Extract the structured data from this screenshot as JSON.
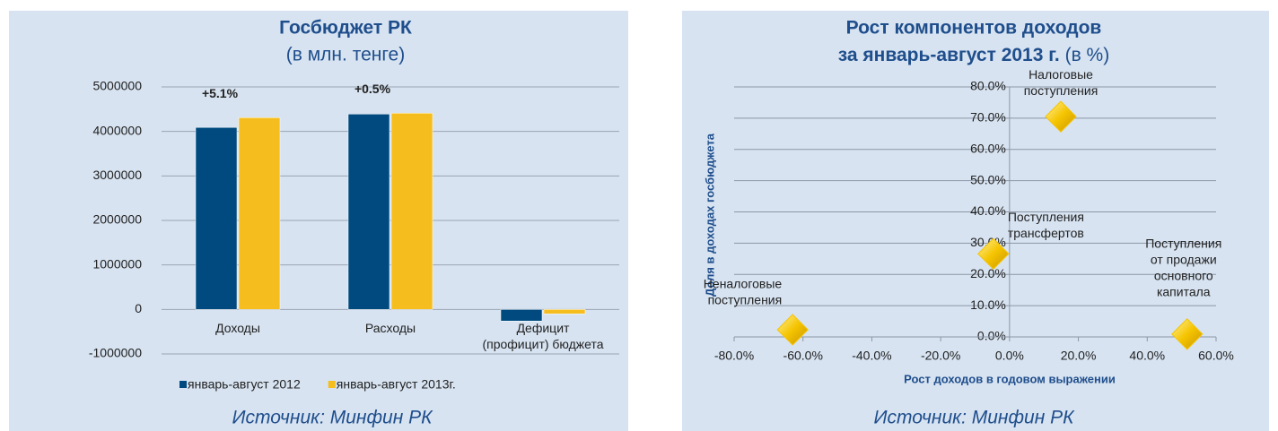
{
  "chart_data": [
    {
      "type": "bar",
      "title": "Госбюджет РК",
      "subtitle": "(в млн. тенге)",
      "categories": [
        [
          "Доходы"
        ],
        [
          "Расходы"
        ],
        [
          "Дефицит",
          "(профицит) бюджета"
        ]
      ],
      "series": [
        {
          "name": "январь-август 2012",
          "color": "#004a80",
          "values": [
            4090000,
            4390000,
            -260000
          ]
        },
        {
          "name": "январь-август 2013г.",
          "color": "#f5be1e",
          "values": [
            4310000,
            4410000,
            -100000
          ]
        }
      ],
      "annotations": [
        "+5.1%",
        "+0.5%"
      ],
      "ylim": [
        -1000000,
        5000000
      ],
      "yticks": [
        -1000000,
        0,
        1000000,
        2000000,
        3000000,
        4000000,
        5000000
      ],
      "grid": true,
      "legend": "bottom",
      "source": "Источник: Минфин РК"
    },
    {
      "type": "scatter",
      "title": "Рост компонентов доходов",
      "title_line2": "за январь-август 2013 г.",
      "title_suffix": "(в %)",
      "xlabel": "Рост доходов в годовом выражении",
      "ylabel": "Доля в доходах госбюджета",
      "color": "#f5c400",
      "points": [
        {
          "label": [
            "Налоговые",
            "поступления"
          ],
          "x": 14.9,
          "y": 70.5
        },
        {
          "label": [
            "Поступления",
            "трансфертов"
          ],
          "x": -4.7,
          "y": 26.6
        },
        {
          "label": [
            "Неналоговые",
            "поступления"
          ],
          "x": -63,
          "y": 2.3
        },
        {
          "label": [
            "Поступления",
            "от продажи",
            "основного",
            "капитала"
          ],
          "x": 51.6,
          "y": 0.9
        }
      ],
      "xlim": [
        -80,
        60
      ],
      "xticks": [
        {
          "value": -80,
          "label": "-80.0%"
        },
        {
          "value": -60,
          "label": "-60.0%"
        },
        {
          "value": -40,
          "label": "-40.0%"
        },
        {
          "value": -20,
          "label": "-20.0%"
        },
        {
          "value": 0,
          "label": "0.0%"
        },
        {
          "value": 20,
          "label": "20.0%"
        },
        {
          "value": 40,
          "label": "40.0%"
        },
        {
          "value": 60,
          "label": "60.0%"
        }
      ],
      "ylim": [
        0,
        80
      ],
      "yticks": [
        {
          "value": 0,
          "label": "0.0%"
        },
        {
          "value": 10,
          "label": "10.0%"
        },
        {
          "value": 20,
          "label": "20.0%"
        },
        {
          "value": 30,
          "label": "30.0%"
        },
        {
          "value": 40,
          "label": "40.0%"
        },
        {
          "value": 50,
          "label": "50.0%"
        },
        {
          "value": 60,
          "label": "60.0%"
        },
        {
          "value": 70,
          "label": "70.0%"
        },
        {
          "value": 80,
          "label": "80.0%"
        }
      ],
      "grid": true,
      "source": "Источник: Минфин РК"
    }
  ]
}
